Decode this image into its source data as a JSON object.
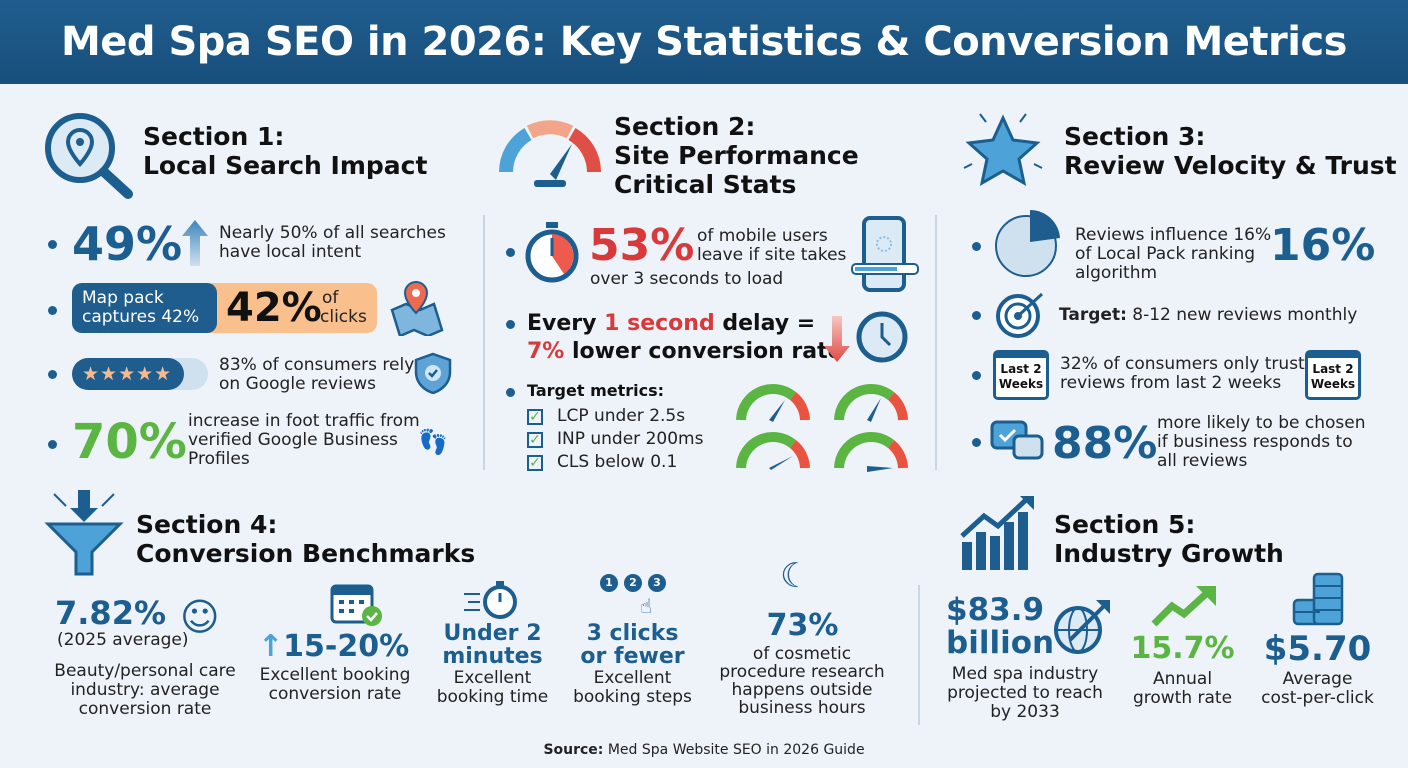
{
  "title": "Med Spa SEO in 2026: Key Statistics & Conversion Metrics",
  "colors": {
    "header": "#1f5d8e",
    "blue": "#1c5e90",
    "green": "#5ab543",
    "red": "#d8393a",
    "orange": "#f9c08e"
  },
  "s1": {
    "title1": "Section 1:",
    "title2": "Local Search Impact",
    "stat1": "49%",
    "stat1_text1": "Nearly 50% of all searches",
    "stat1_text2": "have local intent",
    "map_pack1": "Map pack",
    "map_pack2": "captures 42%",
    "stat2": "42%",
    "stat2_of": "of",
    "stat2_clicks": "clicks",
    "rating_stars": 4.5,
    "stat3_text1": "83% of consumers rely",
    "stat3_text2": "on Google reviews",
    "stat4": "70%",
    "stat4_text1": "increase in foot traffic from",
    "stat4_text2": "verified Google Business",
    "stat4_text3": "Profiles"
  },
  "s2": {
    "title1": "Section 2:",
    "title2": "Site Performance",
    "title3": "Critical Stats",
    "stat1": "53%",
    "stat1_text1": "of mobile users",
    "stat1_text2": "leave if site takes",
    "stat1_text3": "over 3 seconds to load",
    "delay_a": "Every ",
    "delay_b": "1 second",
    "delay_c": " delay =",
    "delay_d": "7%",
    "delay_e": " lower conversion rate",
    "target_label": "Target metrics:",
    "targets": [
      "LCP under 2.5s",
      "INP under 200ms",
      "CLS below 0.1"
    ]
  },
  "s3": {
    "title1": "Section 3:",
    "title2": "Review Velocity & Trust",
    "stat1_text1": "Reviews influence 16%",
    "stat1_text2": "of Local Pack ranking",
    "stat1_text3": "algorithm",
    "stat1": "16%",
    "target_b": "Target:",
    "target_text": " 8-12 new reviews monthly",
    "cal_label1": "Last 2",
    "cal_label2": "Weeks",
    "stat3_text1": "32% of consumers only trust",
    "stat3_text2": "reviews from last 2 weeks",
    "stat4": "88%",
    "stat4_text1": "more likely to be chosen",
    "stat4_text2": "if business responds to",
    "stat4_text3": "all reviews"
  },
  "s4": {
    "title1": "Section 4:",
    "title2": "Conversion Benchmarks",
    "m1": "7.82%",
    "m1_sub": "(2025 average)",
    "m1_t1": "Beauty/personal care",
    "m1_t2": "industry: average",
    "m1_t3": "conversion rate",
    "m2": "15-20%",
    "m2_t1": "Excellent booking",
    "m2_t2": "conversion rate",
    "m3a": "Under 2",
    "m3b": "minutes",
    "m3_t1": "Excellent",
    "m3_t2": "booking time",
    "steps": [
      "1",
      "2",
      "3"
    ],
    "m4a": "3 clicks",
    "m4b": "or fewer",
    "m4_t1": "Excellent",
    "m4_t2": "booking steps",
    "m5": "73%",
    "m5_t1": "of cosmetic",
    "m5_t2": "procedure research",
    "m5_t3": "happens outside",
    "m5_t4": "business hours"
  },
  "s5": {
    "title1": "Section 5:",
    "title2": "Industry Growth",
    "m1a": "$83.9",
    "m1b": "billion",
    "m1_t1": "Med spa industry",
    "m1_t2": "projected to reach",
    "m1_t3": "by 2033",
    "m2": "15.7%",
    "m2_t1": "Annual",
    "m2_t2": "growth rate",
    "m3": "$5.70",
    "m3_t1": "Average",
    "m3_t2": "cost-per-click"
  },
  "source_b": "Source:",
  "source_text": " Med Spa Website SEO in 2026 Guide"
}
